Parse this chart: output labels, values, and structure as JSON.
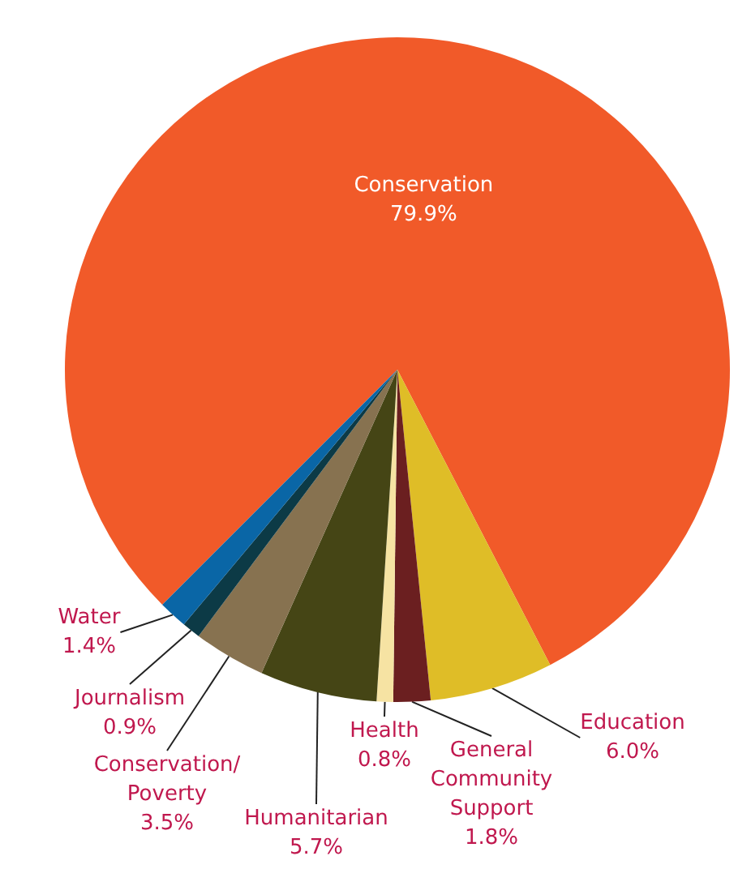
{
  "chart_data": {
    "type": "pie",
    "categories": [
      "Conservation",
      "Education",
      "General\nCommunity\nSupport",
      "Health",
      "Humanitarian",
      "Conservation/\nPoverty",
      "Journalism",
      "Water"
    ],
    "values": [
      79.9,
      6.0,
      1.8,
      0.8,
      5.7,
      3.5,
      0.9,
      1.4
    ],
    "value_labels": [
      "79.9%",
      "6.0%",
      "1.8%",
      "0.8%",
      "5.7%",
      "3.5%",
      "0.9%",
      "1.4%"
    ],
    "colors": [
      "#f15a29",
      "#dfbd27",
      "#6b1f20",
      "#f6e3a3",
      "#454515",
      "#877250",
      "#0c3a46",
      "#0a66a6"
    ]
  }
}
